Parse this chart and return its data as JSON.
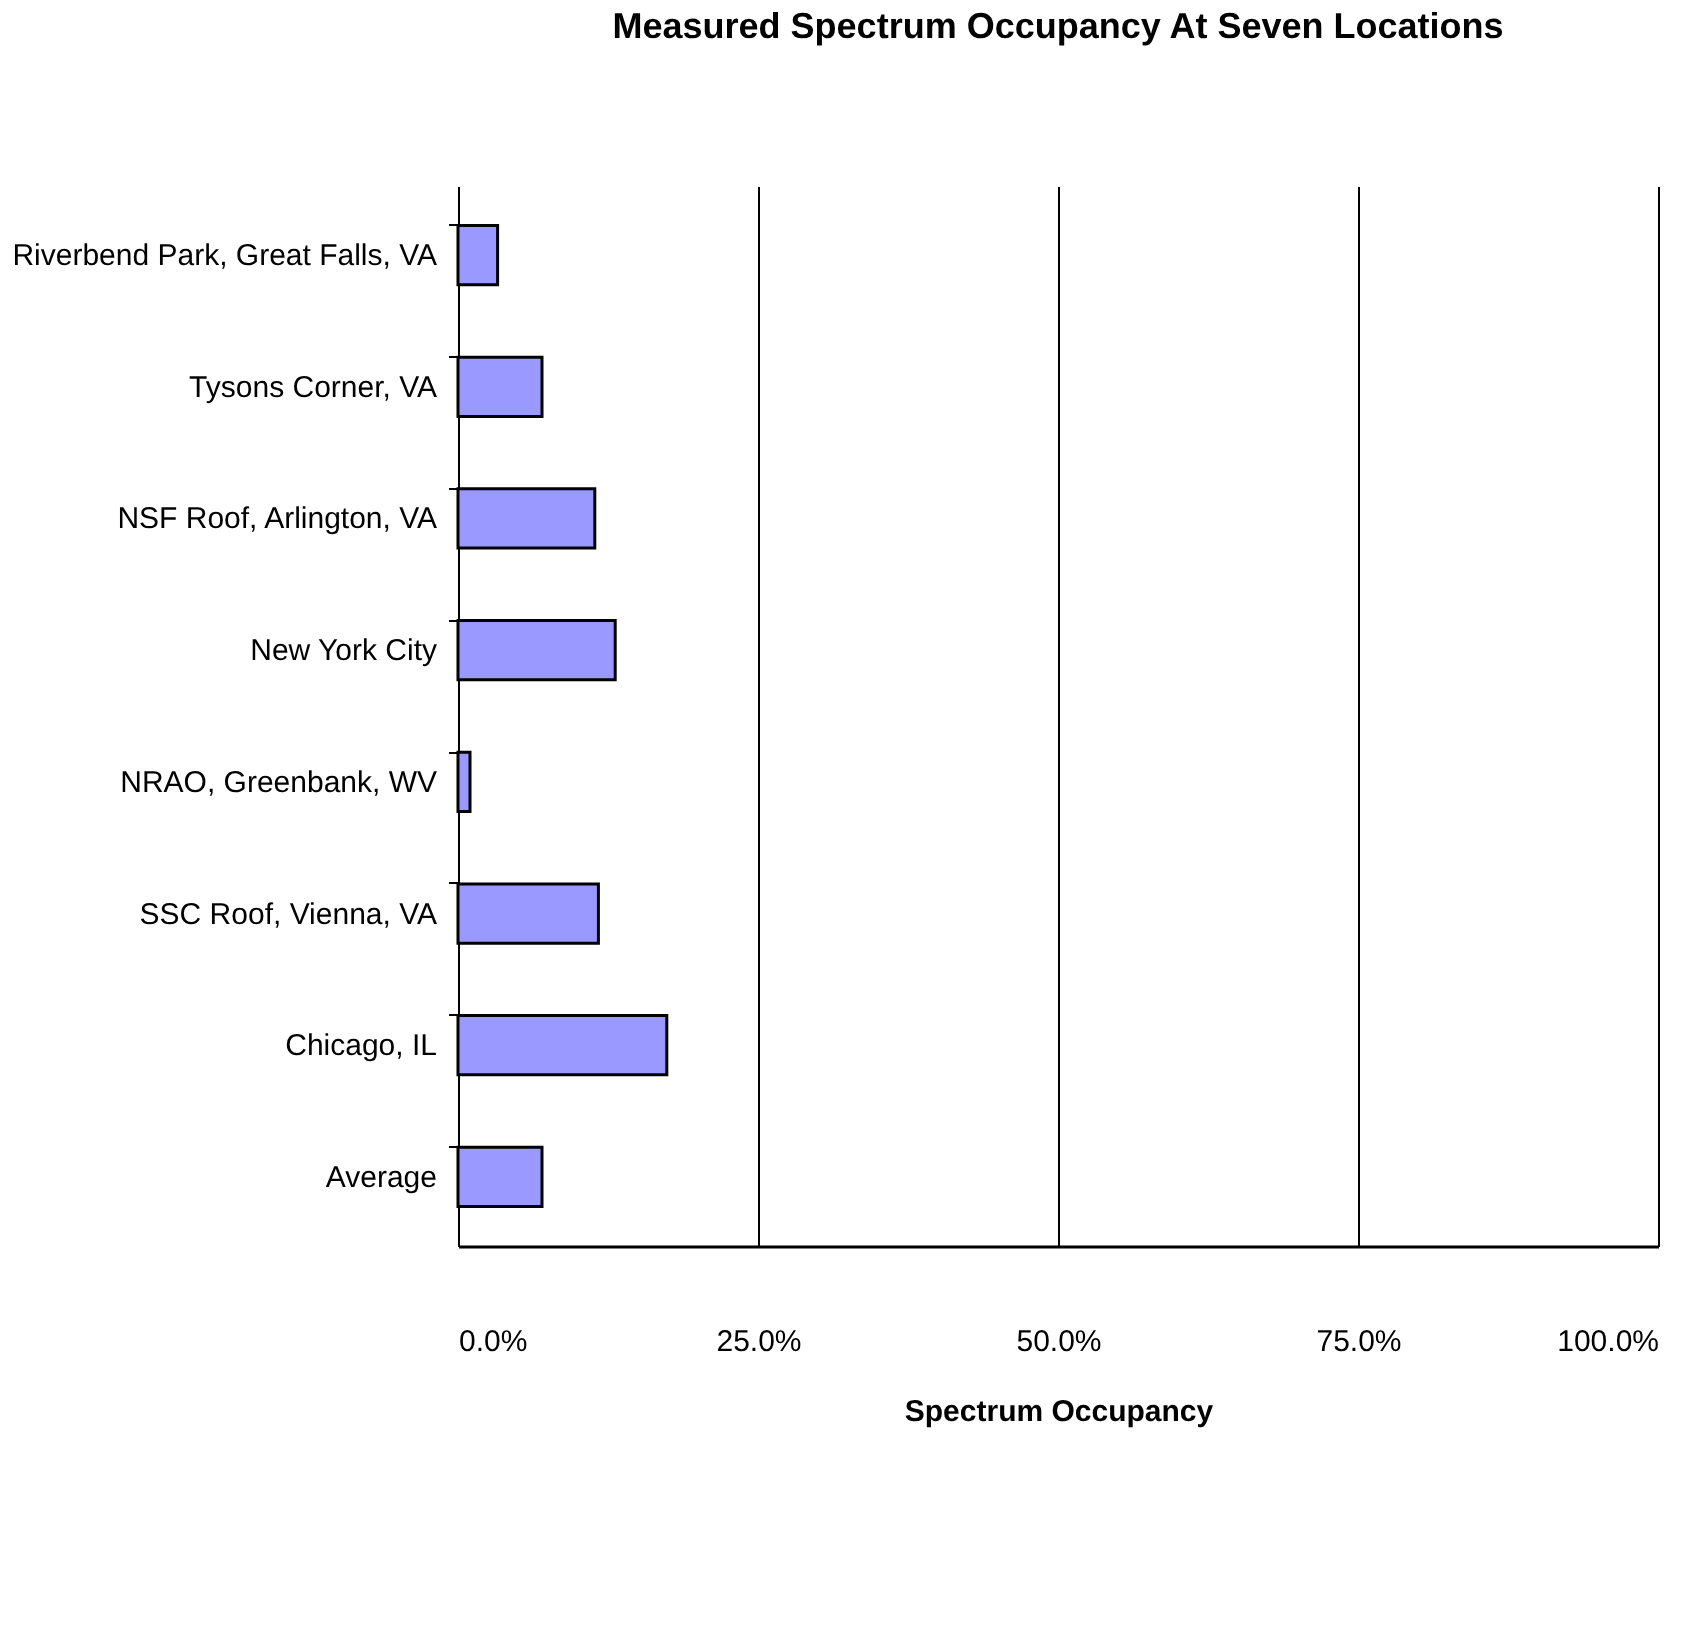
{
  "chart_data": {
    "type": "bar",
    "orientation": "horizontal",
    "title": "Measured Spectrum Occupancy At Seven Locations",
    "xlabel": "Spectrum Occupancy",
    "categories": [
      "Riverbend Park, Great Falls, VA",
      "Tysons Corner, VA",
      "NSF Roof, Arlington, VA",
      "New York City",
      "NRAO, Greenbank, WV",
      "SSC Roof, Vienna, VA",
      "Chicago, IL",
      "Average"
    ],
    "values": [
      3.3,
      7.0,
      11.4,
      13.1,
      1.0,
      11.7,
      17.4,
      7.0
    ],
    "color": "#9999ff",
    "xlim": [
      0,
      100
    ],
    "xticks": [
      {
        "value": 0,
        "label": "0.0%"
      },
      {
        "value": 25,
        "label": "25.0%"
      },
      {
        "value": 50,
        "label": "50.0%"
      },
      {
        "value": 75,
        "label": "75.0%"
      },
      {
        "value": 100,
        "label": "100.0%"
      }
    ],
    "grid": "x"
  }
}
